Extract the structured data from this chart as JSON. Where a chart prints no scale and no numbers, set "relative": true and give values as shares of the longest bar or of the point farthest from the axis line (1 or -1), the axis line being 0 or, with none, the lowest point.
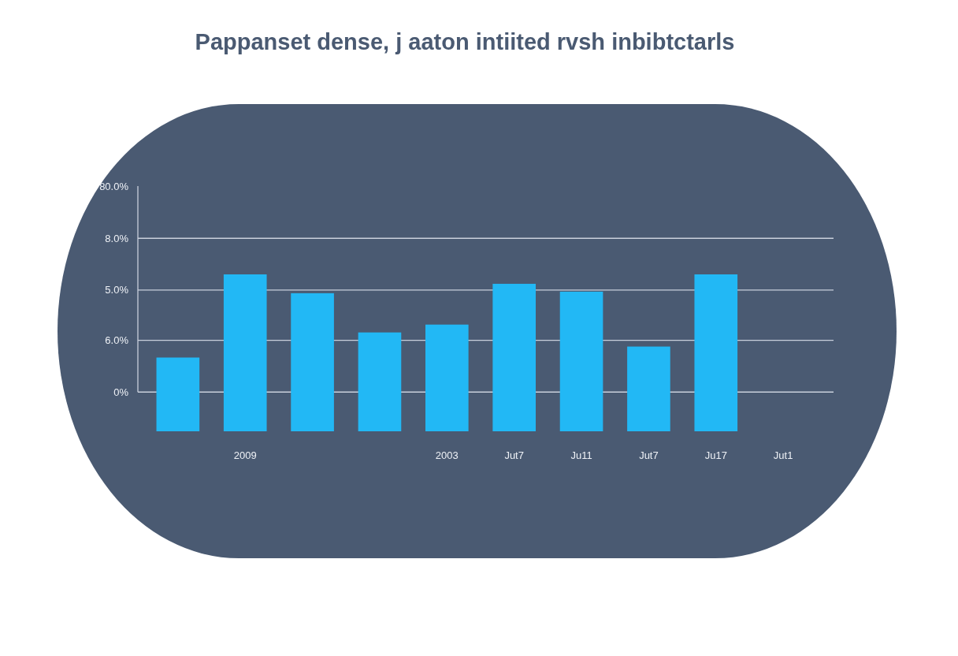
{
  "chart_data": {
    "type": "bar",
    "title": "Pappanset dense, j aaton intiited rvsh inbibtctarls",
    "categories": [
      null,
      "2009",
      null,
      null,
      "2003",
      "Jut7",
      "Ju11",
      "Jut7",
      "Ju17",
      "Jut1"
    ],
    "values": [
      0.47,
      1,
      0.88,
      0.63,
      0.68,
      0.94,
      0.89,
      0.54,
      1,
      null
    ],
    "relative": true,
    "color": "#22b8f5",
    "ref_lines": [
      {
        "axis": "y",
        "value": 0.25
      },
      {
        "axis": "y",
        "value": 0.58
      },
      {
        "axis": "y",
        "value": 0.9
      },
      {
        "axis": "y",
        "value": 1.23
      }
    ],
    "annotations": [
      "80.0%",
      "8.0%",
      "5.0%",
      "6.0%",
      "0%"
    ]
  }
}
